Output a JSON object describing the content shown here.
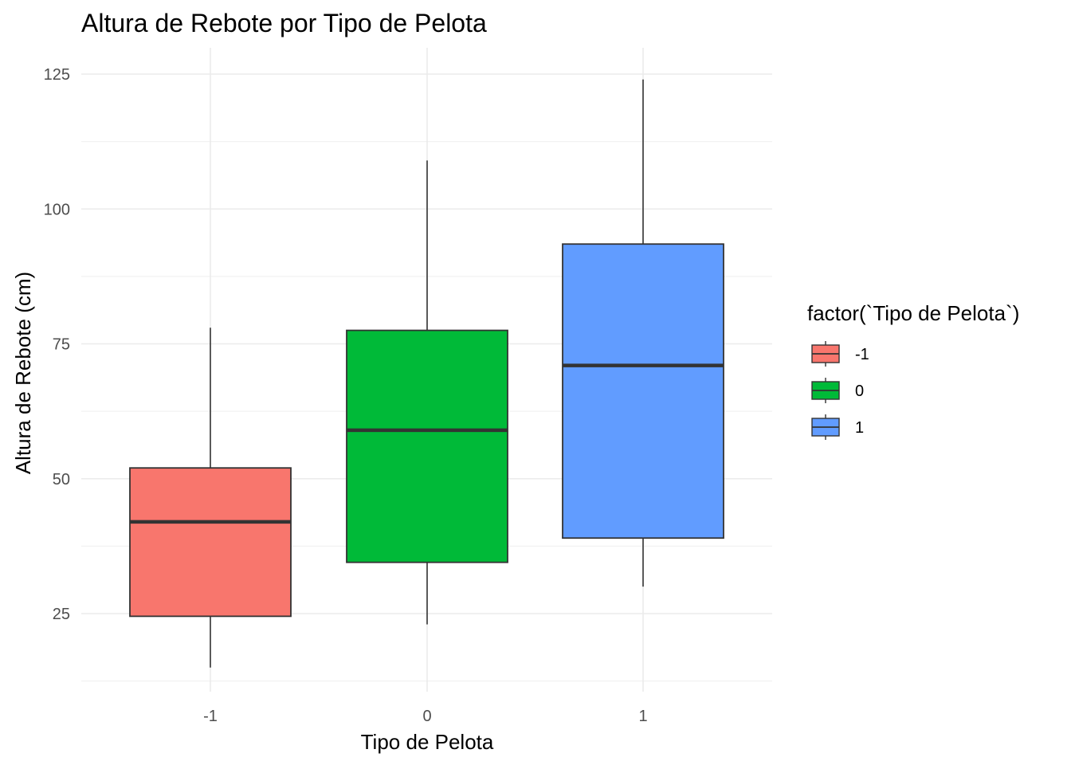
{
  "chart_data": {
    "type": "boxplot",
    "title": "Altura de Rebote por Tipo de Pelota",
    "xlabel": "Tipo de Pelota",
    "ylabel": "Altura de Rebote (cm)",
    "categories": [
      "-1",
      "0",
      "1"
    ],
    "ylim": [
      10,
      128
    ],
    "yticks": [
      25,
      50,
      75,
      100,
      125
    ],
    "grid": true,
    "legend": {
      "title": "factor(`Tipo de Pelota`)",
      "position": "right",
      "entries": [
        "-1",
        "0",
        "1"
      ]
    },
    "boxes": [
      {
        "category": "-1",
        "min": 15,
        "q1": 24.5,
        "median": 42,
        "q3": 52,
        "max": 78,
        "color": "#F8766D"
      },
      {
        "category": "0",
        "min": 23,
        "q1": 34.5,
        "median": 59,
        "q3": 77.5,
        "max": 109,
        "color": "#00BA38"
      },
      {
        "category": "1",
        "min": 30,
        "q1": 39,
        "median": 71,
        "q3": 93.5,
        "max": 124,
        "color": "#619CFF"
      }
    ]
  }
}
